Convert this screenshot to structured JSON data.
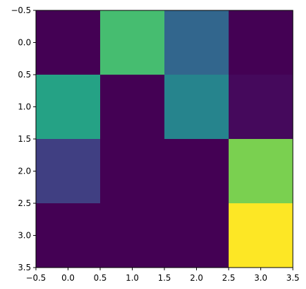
{
  "chart_data": {
    "type": "heatmap",
    "title": "",
    "xlabel": "",
    "ylabel": "",
    "colormap": "viridis",
    "xlim": [
      -0.5,
      3.5
    ],
    "ylim": [
      3.5,
      -0.5
    ],
    "y_inverted": true,
    "grid": false,
    "x_ticks": [
      -0.5,
      0.0,
      0.5,
      1.0,
      1.5,
      2.0,
      2.5,
      3.0,
      3.5
    ],
    "x_tick_labels": [
      "−0.5",
      "0.0",
      "0.5",
      "1.0",
      "1.5",
      "2.0",
      "2.5",
      "3.0",
      "3.5"
    ],
    "y_ticks": [
      -0.5,
      0.0,
      0.5,
      1.0,
      1.5,
      2.0,
      2.5,
      3.0,
      3.5
    ],
    "y_tick_labels": [
      "−0.5",
      "0.0",
      "0.5",
      "1.0",
      "1.5",
      "2.0",
      "2.5",
      "3.0",
      "3.5"
    ],
    "values": [
      [
        0.0,
        0.7,
        0.33,
        0.0
      ],
      [
        0.58,
        0.0,
        0.45,
        0.03
      ],
      [
        0.2,
        0.0,
        0.0,
        0.8
      ],
      [
        0.0,
        0.0,
        0.0,
        1.0
      ]
    ]
  }
}
